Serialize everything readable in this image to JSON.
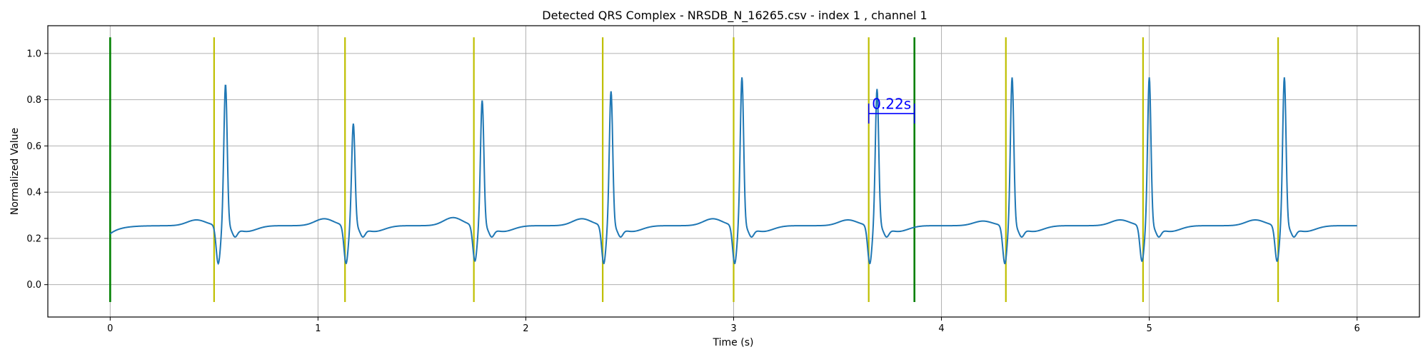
{
  "chart_data": {
    "type": "line",
    "title": "Detected QRS Complex - NRSDB_N_16265.csv - index 1 , channel 1",
    "xlabel": "Time (s)",
    "ylabel": "Normalized Value",
    "xlim": [
      -0.3,
      6.3
    ],
    "ylim": [
      -0.14,
      1.12
    ],
    "xticks": [
      0,
      1,
      2,
      3,
      4,
      5,
      6
    ],
    "xtick_labels": [
      "0",
      "1",
      "2",
      "3",
      "4",
      "5",
      "6"
    ],
    "yticks": [
      0.0,
      0.2,
      0.4,
      0.6,
      0.8,
      1.0
    ],
    "ytick_labels": [
      "0.0",
      "0.2",
      "0.4",
      "0.6",
      "0.8",
      "1.0"
    ],
    "grid": true,
    "signal": {
      "color": "#1f77b4",
      "baseline_start": 0.0,
      "duration": 6.0,
      "beats": [
        {
          "t": 0.555,
          "peak": 0.87,
          "trough": 0.09,
          "t_wave": 0.28
        },
        {
          "t": 1.17,
          "peak": 0.7,
          "trough": 0.09,
          "t_wave": 0.285
        },
        {
          "t": 1.79,
          "peak": 0.8,
          "trough": 0.1,
          "t_wave": 0.29
        },
        {
          "t": 2.41,
          "peak": 0.84,
          "trough": 0.09,
          "t_wave": 0.285
        },
        {
          "t": 3.04,
          "peak": 0.9,
          "trough": 0.09,
          "t_wave": 0.285
        },
        {
          "t": 3.69,
          "peak": 0.85,
          "trough": 0.09,
          "t_wave": 0.28
        },
        {
          "t": 4.34,
          "peak": 0.9,
          "trough": 0.09,
          "t_wave": 0.275
        },
        {
          "t": 5.0,
          "peak": 0.9,
          "trough": 0.1,
          "t_wave": 0.28
        },
        {
          "t": 5.65,
          "peak": 0.9,
          "trough": 0.1,
          "t_wave": 0.28
        }
      ]
    },
    "qrs_markers": {
      "color": "#bfbf00",
      "y_range": [
        -0.075,
        1.07
      ],
      "x": [
        0.5,
        1.13,
        1.75,
        2.37,
        3.0,
        3.65,
        4.31,
        4.97,
        5.62
      ]
    },
    "window_markers": {
      "color": "#008000",
      "y_range": [
        -0.075,
        1.07
      ],
      "x": [
        0.0,
        3.87
      ]
    },
    "annotation": {
      "text": "0.22s",
      "color": "#0000ff",
      "x_start": 3.65,
      "x_end": 3.87,
      "y": 0.74,
      "text_y": 0.76
    }
  }
}
